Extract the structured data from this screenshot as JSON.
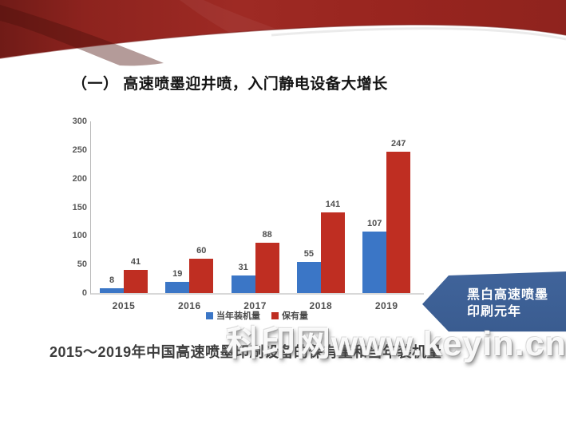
{
  "slide": {
    "title": "（一） 高速喷墨迎井喷，入门静电设备大增长",
    "caption": "2015～2019年中国高速喷墨印刷设备的保有量和当年装机量",
    "watermark": "科印网www.keyin.cn",
    "banner": {
      "line1": "黑白高速喷墨",
      "line2": "印刷元年",
      "color": "#40649b"
    },
    "ribbon_color": "#9e2a24"
  },
  "chart_data": {
    "type": "bar",
    "title": "",
    "categories": [
      "2015",
      "2016",
      "2017",
      "2018",
      "2019"
    ],
    "series": [
      {
        "name": "当年装机量",
        "color": "#3b76c6",
        "values": [
          8,
          19,
          31,
          55,
          107
        ]
      },
      {
        "name": "保有量",
        "color": "#bf2e22",
        "values": [
          41,
          60,
          88,
          141,
          247
        ]
      }
    ],
    "ylim": [
      0,
      300
    ],
    "yticks": [
      0,
      50,
      100,
      150,
      200,
      250,
      300
    ],
    "xlabel": "",
    "ylabel": "",
    "grid": false,
    "legend_position": "bottom",
    "value_labels": true
  }
}
